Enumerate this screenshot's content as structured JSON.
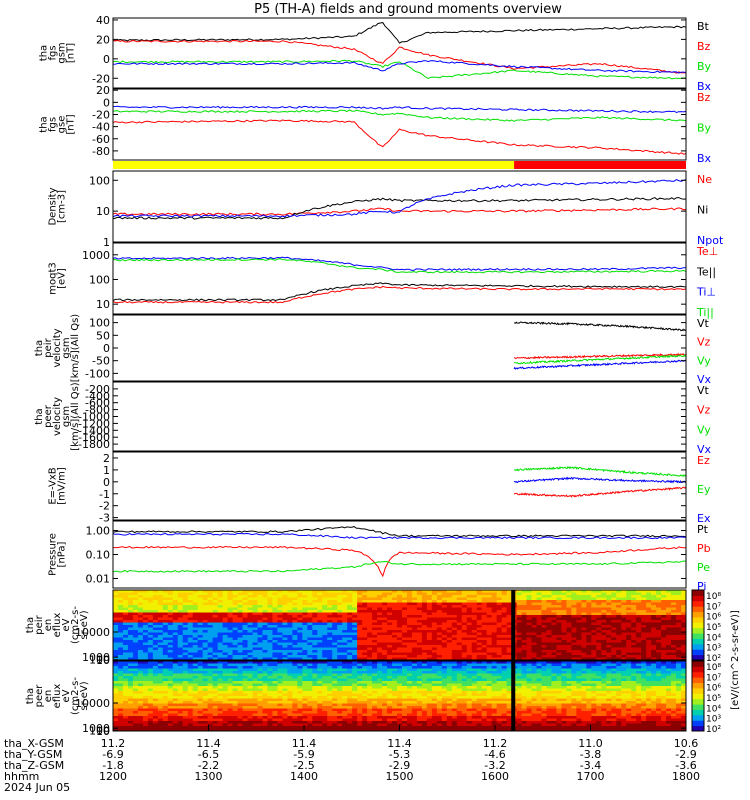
{
  "title": "P5 (TH-A) fields and ground moments overview",
  "colors": {
    "black": "#000000",
    "red": "#ff0000",
    "green": "#00e000",
    "blue": "#0000ff",
    "yellow": "#ffff00",
    "bar_red": "#ff0000"
  },
  "chart_data": [
    {
      "type": "line",
      "panel": "fgs_gsm",
      "ylabel": [
        "tha",
        "fgs",
        "gsm",
        "[nT]"
      ],
      "ylim": [
        -30,
        42
      ],
      "yticks": [
        "40",
        "20",
        "0",
        "-20"
      ],
      "series": [
        {
          "name": "Bt",
          "color": "black",
          "segments": [
            [
              0,
              19
            ],
            [
              0.3,
              20
            ],
            [
              0.42,
              23
            ],
            [
              0.47,
              38
            ],
            [
              0.5,
              16
            ],
            [
              0.55,
              27
            ],
            [
              0.7,
              29
            ],
            [
              0.85,
              31
            ],
            [
              1,
              33
            ]
          ]
        },
        {
          "name": "Bz",
          "color": "red",
          "segments": [
            [
              0,
              18
            ],
            [
              0.3,
              18
            ],
            [
              0.42,
              10
            ],
            [
              0.47,
              -5
            ],
            [
              0.5,
              12
            ],
            [
              0.55,
              4
            ],
            [
              0.7,
              -10
            ],
            [
              0.85,
              -5
            ],
            [
              1,
              -15
            ]
          ]
        },
        {
          "name": "By",
          "color": "green",
          "segments": [
            [
              0,
              -3
            ],
            [
              0.3,
              -3
            ],
            [
              0.42,
              -2
            ],
            [
              0.47,
              -8
            ],
            [
              0.5,
              -3
            ],
            [
              0.55,
              -20
            ],
            [
              0.7,
              -12
            ],
            [
              0.85,
              -18
            ],
            [
              1,
              -20
            ]
          ]
        },
        {
          "name": "Bx",
          "color": "blue",
          "segments": [
            [
              0,
              -5
            ],
            [
              0.3,
              -5
            ],
            [
              0.42,
              -4
            ],
            [
              0.47,
              -12
            ],
            [
              0.5,
              -5
            ],
            [
              0.55,
              -2
            ],
            [
              0.7,
              -8
            ],
            [
              0.85,
              -12
            ],
            [
              1,
              -14
            ]
          ]
        }
      ]
    },
    {
      "type": "line",
      "panel": "fgs_gse",
      "ylabel": [
        "tha",
        "fgs",
        "gse",
        "[nT]"
      ],
      "ylim": [
        -95,
        22
      ],
      "yticks": [
        "20",
        "0",
        "-20",
        "-40",
        "-60",
        "-80"
      ],
      "series": [
        {
          "name": "Bz",
          "color": "red",
          "segments": [
            [
              0,
              -33
            ],
            [
              0.3,
              -30
            ],
            [
              0.42,
              -32
            ],
            [
              0.47,
              -75
            ],
            [
              0.5,
              -45
            ],
            [
              0.55,
              -55
            ],
            [
              0.7,
              -70
            ],
            [
              0.85,
              -75
            ],
            [
              1,
              -85
            ]
          ]
        },
        {
          "name": "By",
          "color": "green",
          "segments": [
            [
              0,
              -15
            ],
            [
              0.3,
              -15
            ],
            [
              0.42,
              -14
            ],
            [
              0.47,
              -20
            ],
            [
              0.5,
              -18
            ],
            [
              0.55,
              -25
            ],
            [
              0.7,
              -30
            ],
            [
              0.85,
              -25
            ],
            [
              1,
              -30
            ]
          ]
        },
        {
          "name": "Bx",
          "color": "blue",
          "segments": [
            [
              0,
              -8
            ],
            [
              0.3,
              -8
            ],
            [
              0.42,
              -8
            ],
            [
              0.47,
              -10
            ],
            [
              0.5,
              -8
            ],
            [
              0.55,
              -10
            ],
            [
              0.7,
              -12
            ],
            [
              0.85,
              -14
            ],
            [
              1,
              -16
            ]
          ]
        }
      ]
    },
    {
      "type": "line",
      "panel": "density",
      "scale": "log",
      "ylabel": [
        "Density",
        "[cm-3]"
      ],
      "ylim": [
        1,
        200
      ],
      "yticks": [
        "100",
        "10",
        "1"
      ],
      "series": [
        {
          "name": "Ne",
          "color": "red",
          "segments": [
            [
              0,
              8
            ],
            [
              0.3,
              8
            ],
            [
              0.42,
              10
            ],
            [
              0.47,
              12
            ],
            [
              0.5,
              10
            ],
            [
              0.7,
              10
            ],
            [
              0.85,
              11
            ],
            [
              1,
              12
            ]
          ]
        },
        {
          "name": "Ni",
          "color": "black",
          "segments": [
            [
              0,
              6
            ],
            [
              0.3,
              6
            ],
            [
              0.42,
              20
            ],
            [
              0.47,
              25
            ],
            [
              0.5,
              22
            ],
            [
              0.7,
              22
            ],
            [
              0.85,
              24
            ],
            [
              1,
              26
            ]
          ]
        },
        {
          "name": "Npot",
          "color": "blue",
          "segments": [
            [
              0,
              7
            ],
            [
              0.3,
              7
            ],
            [
              0.42,
              8
            ],
            [
              0.47,
              10
            ],
            [
              0.5,
              9
            ],
            [
              0.7,
              70
            ],
            [
              0.85,
              80
            ],
            [
              1,
              100
            ]
          ]
        }
      ]
    },
    {
      "type": "line",
      "panel": "temp",
      "scale": "log",
      "ylabel": [
        "moqt3",
        "[eV]"
      ],
      "ylim": [
        4,
        3000
      ],
      "yticks": [
        "1000",
        "100",
        "10"
      ],
      "series": [
        {
          "name": "Te⊥",
          "color": "red",
          "segments": [
            [
              0,
              12
            ],
            [
              0.3,
              12
            ],
            [
              0.42,
              40
            ],
            [
              0.47,
              50
            ],
            [
              0.5,
              45
            ],
            [
              0.7,
              40
            ],
            [
              0.85,
              42
            ],
            [
              1,
              40
            ]
          ]
        },
        {
          "name": "Te||",
          "color": "black",
          "segments": [
            [
              0,
              15
            ],
            [
              0.3,
              15
            ],
            [
              0.42,
              55
            ],
            [
              0.47,
              70
            ],
            [
              0.5,
              60
            ],
            [
              0.7,
              55
            ],
            [
              0.85,
              52
            ],
            [
              1,
              50
            ]
          ]
        },
        {
          "name": "Ti⊥",
          "color": "blue",
          "segments": [
            [
              0,
              700
            ],
            [
              0.3,
              750
            ],
            [
              0.42,
              400
            ],
            [
              0.47,
              300
            ],
            [
              0.5,
              250
            ],
            [
              0.7,
              260
            ],
            [
              0.85,
              260
            ],
            [
              1,
              300
            ]
          ]
        },
        {
          "name": "Ti||",
          "color": "green",
          "segments": [
            [
              0,
              600
            ],
            [
              0.3,
              650
            ],
            [
              0.42,
              300
            ],
            [
              0.47,
              250
            ],
            [
              0.5,
              200
            ],
            [
              0.7,
              200
            ],
            [
              0.85,
              210
            ],
            [
              1,
              220
            ]
          ]
        }
      ]
    },
    {
      "type": "line",
      "panel": "peir_velocity",
      "ylabel": [
        "tha",
        "peir",
        "velocity",
        "gsm",
        "[km/s](All Qs)"
      ],
      "ylim": [
        -130,
        130
      ],
      "yticks": [
        "100",
        "50",
        "0",
        "-50",
        "-100"
      ],
      "series": [
        {
          "name": "Vt",
          "color": "black",
          "segments": [
            [
              0.7,
              100
            ],
            [
              0.8,
              95
            ],
            [
              0.9,
              85
            ],
            [
              1,
              70
            ]
          ]
        },
        {
          "name": "Vz",
          "color": "red",
          "segments": [
            [
              0.7,
              -40
            ],
            [
              0.8,
              -35
            ],
            [
              0.9,
              -30
            ],
            [
              1,
              -25
            ]
          ]
        },
        {
          "name": "Vy",
          "color": "green",
          "segments": [
            [
              0.7,
              -60
            ],
            [
              0.8,
              -50
            ],
            [
              0.9,
              -40
            ],
            [
              1,
              -30
            ]
          ]
        },
        {
          "name": "Vx",
          "color": "blue",
          "segments": [
            [
              0.7,
              -80
            ],
            [
              0.8,
              -70
            ],
            [
              0.9,
              -60
            ],
            [
              1,
              -50
            ]
          ]
        }
      ]
    },
    {
      "type": "line",
      "panel": "peer_velocity",
      "ylabel": [
        "tha",
        "peer",
        "velocity",
        "gsm",
        "[km/s](All Qs)"
      ],
      "ylim": [
        -2000,
        0
      ],
      "yticks": [
        "-200",
        "-400",
        "-600",
        "-800",
        "-1000",
        "-1200",
        "-1400",
        "-1600",
        "-1800"
      ],
      "series": [
        {
          "name": "Vt",
          "color": "black",
          "segments": []
        },
        {
          "name": "Vz",
          "color": "red",
          "segments": []
        },
        {
          "name": "Vy",
          "color": "green",
          "segments": []
        },
        {
          "name": "Vx",
          "color": "blue",
          "segments": []
        }
      ]
    },
    {
      "type": "line",
      "panel": "efield",
      "ylabel": [
        "E=-VxB",
        "[mV/m]"
      ],
      "ylim": [
        -3.2,
        2.5
      ],
      "yticks": [
        "2",
        "1",
        "0",
        "-1",
        "-2",
        "-3"
      ],
      "series": [
        {
          "name": "Ez",
          "color": "red",
          "segments": [
            [
              0.7,
              -1
            ],
            [
              0.8,
              -1.2
            ],
            [
              0.9,
              -0.8
            ],
            [
              1,
              -0.5
            ]
          ]
        },
        {
          "name": "Ey",
          "color": "green",
          "segments": [
            [
              0.7,
              1
            ],
            [
              0.8,
              1.2
            ],
            [
              0.9,
              0.8
            ],
            [
              1,
              0.5
            ]
          ]
        },
        {
          "name": "Ex",
          "color": "blue",
          "segments": [
            [
              0.7,
              0
            ],
            [
              0.8,
              0.3
            ],
            [
              0.9,
              0.1
            ],
            [
              1,
              0
            ]
          ]
        }
      ]
    },
    {
      "type": "line",
      "panel": "pressure",
      "scale": "log",
      "ylabel": [
        "Pressure",
        "[nPa]"
      ],
      "ylim": [
        0.004,
        2.5
      ],
      "yticks": [
        "1.00",
        "0.10",
        "0.01"
      ],
      "series": [
        {
          "name": "Pt",
          "color": "black",
          "segments": [
            [
              0,
              0.9
            ],
            [
              0.3,
              0.9
            ],
            [
              0.42,
              1.4
            ],
            [
              0.47,
              0.8
            ],
            [
              0.5,
              0.6
            ],
            [
              0.7,
              0.6
            ],
            [
              0.85,
              0.6
            ],
            [
              1,
              0.6
            ]
          ]
        },
        {
          "name": "Pb",
          "color": "red",
          "segments": [
            [
              0,
              0.2
            ],
            [
              0.3,
              0.2
            ],
            [
              0.42,
              0.15
            ],
            [
              0.47,
              0.01
            ],
            [
              0.5,
              0.12
            ],
            [
              0.7,
              0.1
            ],
            [
              0.85,
              0.12
            ],
            [
              1,
              0.2
            ]
          ]
        },
        {
          "name": "Pe",
          "color": "green",
          "segments": [
            [
              0,
              0.02
            ],
            [
              0.3,
              0.02
            ],
            [
              0.42,
              0.03
            ],
            [
              0.47,
              0.05
            ],
            [
              0.5,
              0.04
            ],
            [
              0.7,
              0.04
            ],
            [
              0.85,
              0.04
            ],
            [
              1,
              0.05
            ]
          ]
        },
        {
          "name": "Pi",
          "color": "blue",
          "segments": [
            [
              0,
              0.7
            ],
            [
              0.3,
              0.7
            ],
            [
              0.42,
              0.5
            ],
            [
              0.47,
              0.5
            ],
            [
              0.5,
              0.5
            ],
            [
              0.7,
              0.5
            ],
            [
              0.85,
              0.5
            ],
            [
              1,
              0.5
            ]
          ]
        }
      ]
    },
    {
      "type": "heatmap",
      "panel": "peir_spectrogram",
      "ylabel": [
        "tha",
        "peir",
        "en",
        "eflux",
        "eV",
        "(cm2-s-",
        "sr-eV)"
      ],
      "ylim": [
        5,
        25000
      ],
      "yticks": [
        "10000",
        "1000",
        "100",
        "10"
      ]
    },
    {
      "type": "heatmap",
      "panel": "peer_spectrogram",
      "ylabel": [
        "tha",
        "peer",
        "en",
        "eflux",
        "eV",
        "(cm2-s-",
        "sr-eV)"
      ],
      "ylim": [
        5,
        25000
      ],
      "yticks": [
        "10000",
        "1000",
        "100",
        "10"
      ]
    }
  ],
  "mode_bar": {
    "segments": [
      {
        "from": 0.0,
        "to": 0.7,
        "color": "yellow"
      },
      {
        "from": 0.7,
        "to": 1.0,
        "color": "bar_red"
      }
    ]
  },
  "colorbar": {
    "label": "[eV/(cm^2-s-sr-eV)]",
    "ticks_top": [
      "10⁸",
      "10⁷",
      "10⁶",
      "10⁵",
      "10⁴",
      "10³",
      "10²"
    ],
    "ticks_bottom": [
      "10⁸",
      "10⁷",
      "10⁶",
      "10⁵",
      "10⁴",
      "10³",
      "10²"
    ]
  },
  "x_axis": {
    "rows": [
      {
        "label": "tha_X-GSM",
        "values": [
          "11.2",
          "11.4",
          "11.4",
          "11.4",
          "11.2",
          "11.0",
          "10.6"
        ]
      },
      {
        "label": "tha_Y-GSM",
        "values": [
          "-6.9",
          "-6.5",
          "-5.9",
          "-5.3",
          "-4.6",
          "-3.8",
          "-2.9"
        ]
      },
      {
        "label": "tha_Z-GSM",
        "values": [
          "-1.8",
          "-2.2",
          "-2.5",
          "-2.9",
          "-3.2",
          "-3.4",
          "-3.6"
        ]
      },
      {
        "label": "hhmm",
        "values": [
          "1200",
          "1300",
          "1400",
          "1500",
          "1600",
          "1700",
          "1800"
        ]
      }
    ],
    "date": "2024 Jun 05"
  }
}
